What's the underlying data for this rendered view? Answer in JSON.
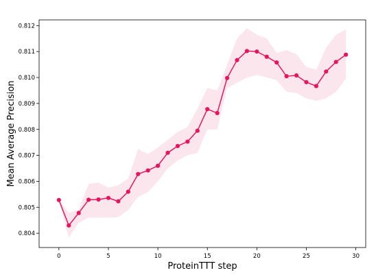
{
  "chart_data": {
    "type": "line",
    "xlabel": "ProteinTTT step",
    "ylabel": "Mean Average Precision",
    "xlim": [
      -2,
      31
    ],
    "ylim": [
      0.80345,
      0.81222
    ],
    "xticks": [
      0,
      5,
      10,
      15,
      20,
      25,
      30
    ],
    "yticks": [
      0.804,
      0.805,
      0.806,
      0.807,
      0.808,
      0.809,
      0.81,
      0.811,
      0.812
    ],
    "grid": false,
    "colors": {
      "line": "#e8155a",
      "band": "#fbdde8"
    },
    "series": [
      {
        "x": [
          0,
          1,
          2,
          3,
          4,
          5,
          6,
          7,
          8,
          9,
          10,
          11,
          12,
          13,
          14,
          15,
          16,
          17,
          18,
          19,
          20,
          21,
          22,
          23,
          24,
          25,
          26,
          27,
          28,
          29
        ],
        "y": [
          0.80528,
          0.8043,
          0.80478,
          0.80529,
          0.8053,
          0.80536,
          0.80523,
          0.8056,
          0.80628,
          0.80642,
          0.8066,
          0.8071,
          0.80736,
          0.80753,
          0.80795,
          0.80878,
          0.80863,
          0.80998,
          0.81067,
          0.81102,
          0.811,
          0.8108,
          0.81058,
          0.81005,
          0.81008,
          0.80982,
          0.80967,
          0.81023,
          0.8106,
          0.81088
        ],
        "lower": [
          0.80528,
          0.80383,
          0.8044,
          0.8046,
          0.8046,
          0.8046,
          0.80462,
          0.8049,
          0.8054,
          0.8056,
          0.806,
          0.8065,
          0.8068,
          0.807,
          0.8071,
          0.808,
          0.808,
          0.8096,
          0.8098,
          0.81,
          0.8101,
          0.81,
          0.8099,
          0.80945,
          0.8094,
          0.8092,
          0.8091,
          0.8092,
          0.80945,
          0.80995
        ],
        "upper": [
          0.80528,
          0.8048,
          0.8049,
          0.8059,
          0.80595,
          0.80575,
          0.80585,
          0.8061,
          0.80725,
          0.80705,
          0.8073,
          0.8076,
          0.8079,
          0.8081,
          0.8088,
          0.8096,
          0.8095,
          0.8105,
          0.8115,
          0.8119,
          0.81165,
          0.8115,
          0.81095,
          0.81105,
          0.8109,
          0.8104,
          0.8103,
          0.81115,
          0.81165,
          0.81185
        ]
      }
    ]
  }
}
